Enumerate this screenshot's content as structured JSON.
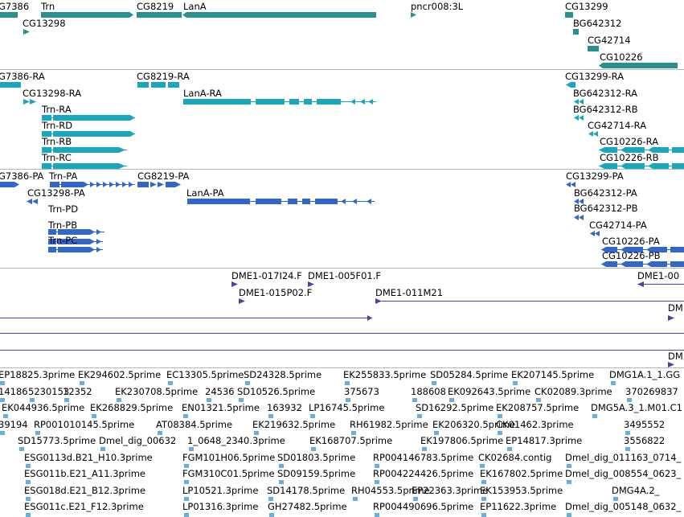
{
  "tracks": {
    "genes": {
      "color": "#2a8f8f",
      "labels": [
        "G7386",
        "Trn",
        "CG8219",
        "LanA",
        "pncr008:3L",
        "CG13299",
        "CG13298",
        "BG642312",
        "CG42714",
        "CG10226"
      ]
    },
    "transcripts": {
      "color": "#1aa7bd",
      "labels": [
        "G7386-RA",
        "CG8219-RA",
        "CG13299-RA",
        "CG13298-RA",
        "LanA-RA",
        "BG642312-RA",
        "Trn-RA",
        "BG642312-RB",
        "Trn-RD",
        "CG42714-RA",
        "Trn-RB",
        "CG10226-RA",
        "Trn-RC",
        "CG10226-RB"
      ]
    },
    "proteins": {
      "color": "#3366cc",
      "labels": [
        "G7386-PA",
        "Trn-PA",
        "CG8219-PA",
        "CG13299-PA",
        "CG13298-PA",
        "LanA-PA",
        "BG642312-PA",
        "BG642312-PB",
        "Trn-PD",
        "CG42714-PA",
        "Trn-PB",
        "CG10226-PA",
        "Trn-PC",
        "CG10226-PB"
      ]
    },
    "clones": {
      "color": "#5b3c9e",
      "labels": [
        "DME1-017I24.F",
        "DME1-005F01.F",
        "DME1-00",
        "DME1-015P02.F",
        "DME1-011M21",
        "DM",
        "DM"
      ]
    },
    "ests": {
      "color": "#6aaee0",
      "rows": [
        [
          "EP18825.3prime",
          "EK294602.5prime",
          "EC13305.5prime",
          "SD24328.5prime",
          "EK255833.5prime",
          "SD05284.5prime",
          "EK207145.5prime",
          "DMG1A.1_1.GG"
        ],
        [
          "14186",
          "5230153",
          "12352",
          "EK230708.5prime",
          "24536",
          "SD10526.5prime",
          "375673",
          "188608",
          "EK092643.5prime",
          "CK02089.3prime",
          "370269837"
        ],
        [
          "EK044936.5prime",
          "EK268829.5prime",
          "EN01321.5prime",
          "163932",
          "LP16745.5prime",
          "SD16292.5prime",
          "EK208757.5prime",
          "DMG5A.3_1.M01.C1"
        ],
        [
          "39194",
          "RP001010145.5prime",
          "AT08384.5prime",
          "EK219632.5prime",
          "RH61982.5prime",
          "EK206320.5prime",
          "CK01462.3prime",
          "3495552"
        ],
        [
          "SD15773.5prime",
          "Dmel_dig_00632",
          "1_0648_2340.3prime",
          "EK168707.5prime",
          "EK197806.5prime",
          "EP14817.3prime",
          "3556822"
        ],
        [
          "ESG0113d.B21_H10.3prime",
          "FGM101H06.5prime",
          "SD01803.5prime",
          "RP004146783.5prime",
          "CK02684.contig",
          "Dmel_dig_011163_0714_"
        ],
        [
          "ESG011b.E21_A11.3prime",
          "FGM310C01.5prime",
          "SD09159.5prime",
          "RP004224426.5prime",
          "EK167802.5prime",
          "Dmel_dig_008554_0623_"
        ],
        [
          "ESG018d.E21_B12.3prime",
          "LP10521.3prime",
          "SD14178.5prime",
          "RH04553.5prime",
          "EP22363.3prime",
          "EK153953.5prime",
          "DMG4A.2_"
        ],
        [
          "ESG011c.E21_F12.3prime",
          "LP01316.3prime",
          "GH27482.5prime",
          "RP004490696.5prime",
          "EP11622.3prime",
          "Dmel_dig_005148_0632_"
        ]
      ]
    }
  }
}
